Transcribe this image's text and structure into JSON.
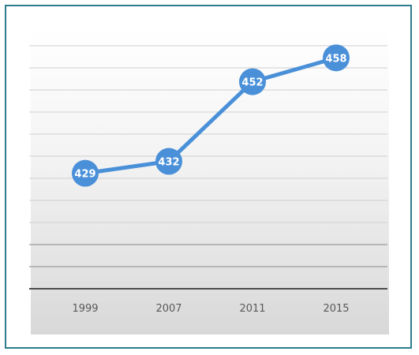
{
  "chart_data": {
    "type": "line",
    "categories": [
      "1999",
      "2007",
      "2011",
      "2015"
    ],
    "series": [
      {
        "values": [
          429,
          432,
          452,
          458
        ],
        "color": "#4a90d9"
      }
    ],
    "data_labels": [
      "429",
      "432",
      "452",
      "458"
    ],
    "ylim": [
      400,
      465
    ],
    "gridlines": true,
    "legend": "none",
    "frame_color": "#2e7d8c",
    "axis_color": "#4d4d4d",
    "gridline_color": "#cfcfcf"
  }
}
